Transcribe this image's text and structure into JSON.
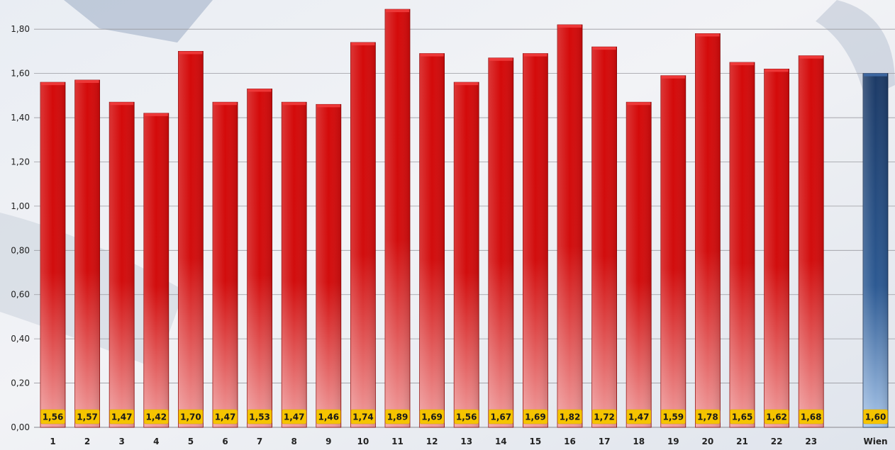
{
  "colors": {
    "bar_main": "#d10a0a",
    "bar_highlight": "#1d3d6b",
    "label_bg": "#f5c400",
    "label_text": "#1a1a1a",
    "grid": "#9a9aa0",
    "axis_text": "#222222"
  },
  "chart_data": {
    "type": "bar",
    "title": "",
    "xlabel": "",
    "ylabel": "",
    "categories": [
      "1",
      "2",
      "3",
      "4",
      "5",
      "6",
      "7",
      "8",
      "9",
      "10",
      "11",
      "12",
      "13",
      "14",
      "15",
      "16",
      "17",
      "18",
      "19",
      "20",
      "21",
      "22",
      "23",
      "Wien"
    ],
    "values": [
      1.56,
      1.57,
      1.47,
      1.42,
      1.7,
      1.47,
      1.53,
      1.47,
      1.46,
      1.74,
      1.89,
      1.69,
      1.56,
      1.67,
      1.69,
      1.82,
      1.72,
      1.47,
      1.59,
      1.78,
      1.65,
      1.62,
      1.68,
      1.6
    ],
    "value_labels": [
      "1,56",
      "1,57",
      "1,47",
      "1,42",
      "1,70",
      "1,47",
      "1,53",
      "1,47",
      "1,46",
      "1,74",
      "1,89",
      "1,69",
      "1,56",
      "1,67",
      "1,69",
      "1,82",
      "1,72",
      "1,47",
      "1,59",
      "1,78",
      "1,65",
      "1,62",
      "1,68",
      "1,60"
    ],
    "highlight_category": "Wien",
    "yticks": [
      0,
      0.2,
      0.4,
      0.6,
      0.8,
      1.0,
      1.2,
      1.4,
      1.6,
      1.8
    ],
    "ytick_labels": [
      "0,00",
      "0,20",
      "0,40",
      "0,60",
      "0,80",
      "1,00",
      "1,20",
      "1,40",
      "1,60",
      "1,80"
    ],
    "ylim": [
      0,
      1.9
    ],
    "grid": true,
    "legend": "none"
  }
}
